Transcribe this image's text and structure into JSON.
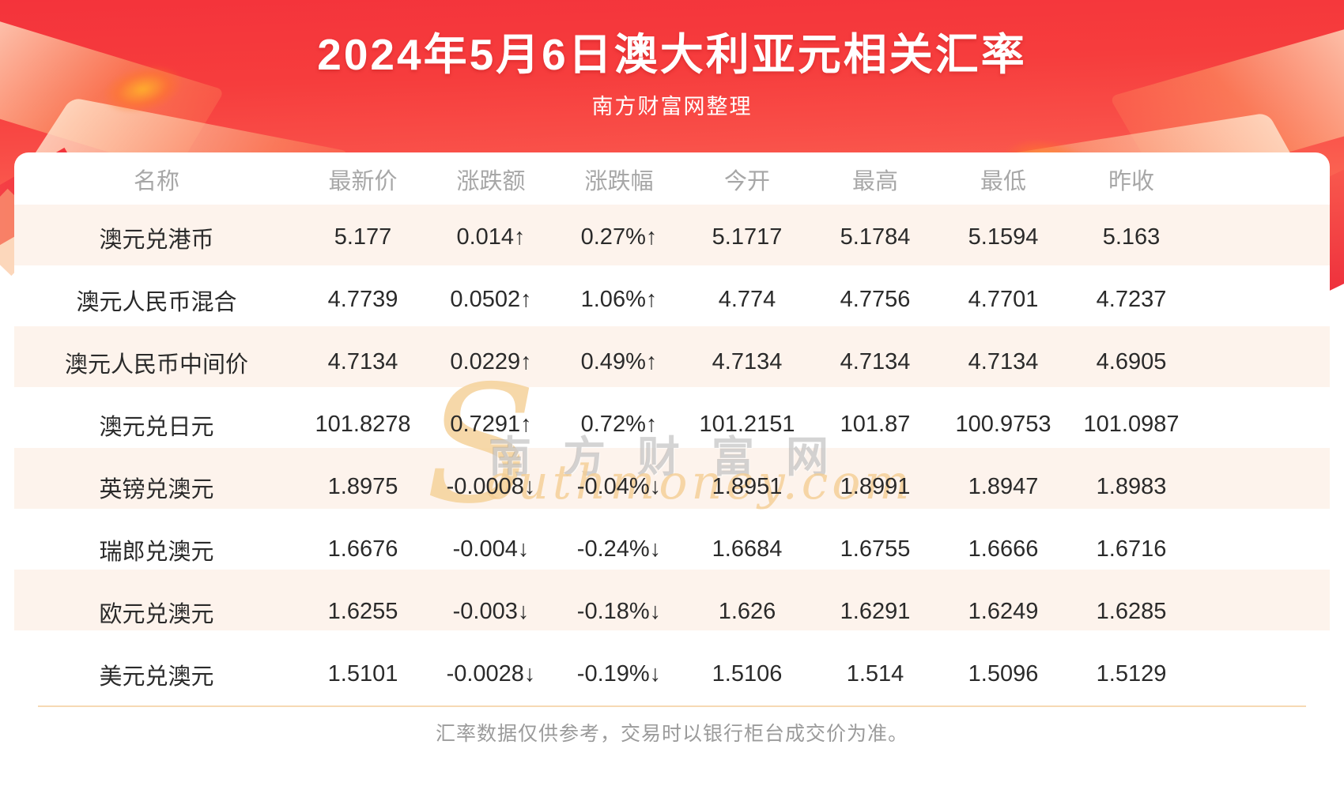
{
  "header": {
    "title": "2024年5月6日澳大利亚元相关汇率",
    "subtitle": "南方财富网整理"
  },
  "watermark": {
    "s_glyph": "S",
    "cn_text": "南方财富网",
    "en_text": "outhmoney.com"
  },
  "footer": {
    "note": "汇率数据仅供参考，交易时以银行柜台成交价为准。"
  },
  "colors": {
    "banner_red_top": "#f4333b",
    "banner_red_bottom": "#fb6b55",
    "up_red": "#ee3229",
    "down_green": "#1b7e1b",
    "row_alt_bg": "#fdf3ec",
    "header_text_gray": "#a7a7a7",
    "divider_peach": "#f6d9b4"
  },
  "chart_data": {
    "type": "table",
    "title": "2024年5月6日澳大利亚元相关汇率",
    "columns": [
      "名称",
      "最新价",
      "涨跌额",
      "涨跌幅",
      "今开",
      "最高",
      "最低",
      "昨收"
    ],
    "rows": [
      {
        "name": "澳元兑港币",
        "latest": "5.177",
        "change": "0.014↑",
        "change_pct": "0.27%↑",
        "open": "5.1717",
        "high": "5.1784",
        "low": "5.1594",
        "prev_close": "5.163",
        "direction": "up"
      },
      {
        "name": "澳元人民币混合",
        "latest": "4.7739",
        "change": "0.0502↑",
        "change_pct": "1.06%↑",
        "open": "4.774",
        "high": "4.7756",
        "low": "4.7701",
        "prev_close": "4.7237",
        "direction": "up"
      },
      {
        "name": "澳元人民币中间价",
        "latest": "4.7134",
        "change": "0.0229↑",
        "change_pct": "0.49%↑",
        "open": "4.7134",
        "high": "4.7134",
        "low": "4.7134",
        "prev_close": "4.6905",
        "direction": "up"
      },
      {
        "name": "澳元兑日元",
        "latest": "101.8278",
        "change": "0.7291↑",
        "change_pct": "0.72%↑",
        "open": "101.2151",
        "high": "101.87",
        "low": "100.9753",
        "prev_close": "101.0987",
        "direction": "up"
      },
      {
        "name": "英镑兑澳元",
        "latest": "1.8975",
        "change": "-0.0008↓",
        "change_pct": "-0.04%↓",
        "open": "1.8951",
        "high": "1.8991",
        "low": "1.8947",
        "prev_close": "1.8983",
        "direction": "down"
      },
      {
        "name": "瑞郎兑澳元",
        "latest": "1.6676",
        "change": "-0.004↓",
        "change_pct": "-0.24%↓",
        "open": "1.6684",
        "high": "1.6755",
        "low": "1.6666",
        "prev_close": "1.6716",
        "direction": "down"
      },
      {
        "name": "欧元兑澳元",
        "latest": "1.6255",
        "change": "-0.003↓",
        "change_pct": "-0.18%↓",
        "open": "1.626",
        "high": "1.6291",
        "low": "1.6249",
        "prev_close": "1.6285",
        "direction": "down"
      },
      {
        "name": "美元兑澳元",
        "latest": "1.5101",
        "change": "-0.0028↓",
        "change_pct": "-0.19%↓",
        "open": "1.5106",
        "high": "1.514",
        "low": "1.5096",
        "prev_close": "1.5129",
        "direction": "down"
      }
    ]
  }
}
